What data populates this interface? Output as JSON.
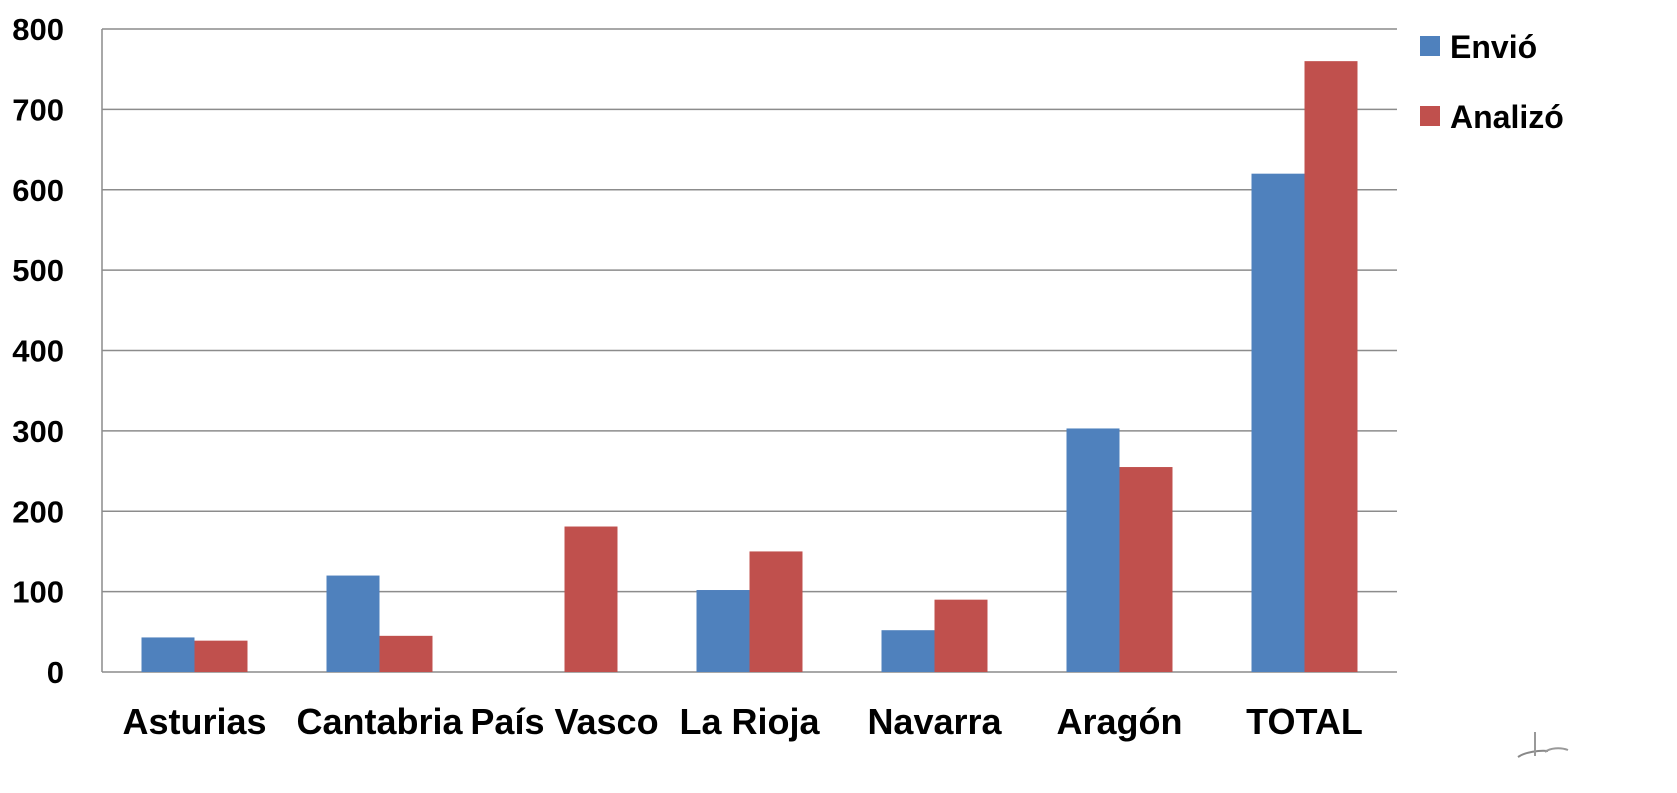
{
  "chart_data": {
    "type": "bar",
    "categories": [
      "Asturias",
      "Cantabria",
      "País Vasco",
      "La Rioja",
      "Navarra",
      "Aragón",
      "TOTAL"
    ],
    "series": [
      {
        "name": "Envió",
        "values": [
          43,
          120,
          0,
          102,
          52,
          303,
          620
        ],
        "color": "#4f81bd"
      },
      {
        "name": "Analizó",
        "values": [
          39,
          45,
          181,
          150,
          90,
          255,
          760
        ],
        "color": "#c0504d"
      }
    ],
    "title": "",
    "xlabel": "",
    "ylabel": "",
    "ylim": [
      0,
      800
    ],
    "yticks": [
      0,
      100,
      200,
      300,
      400,
      500,
      600,
      700,
      800
    ],
    "grid": true,
    "legend_position": "top-right"
  }
}
